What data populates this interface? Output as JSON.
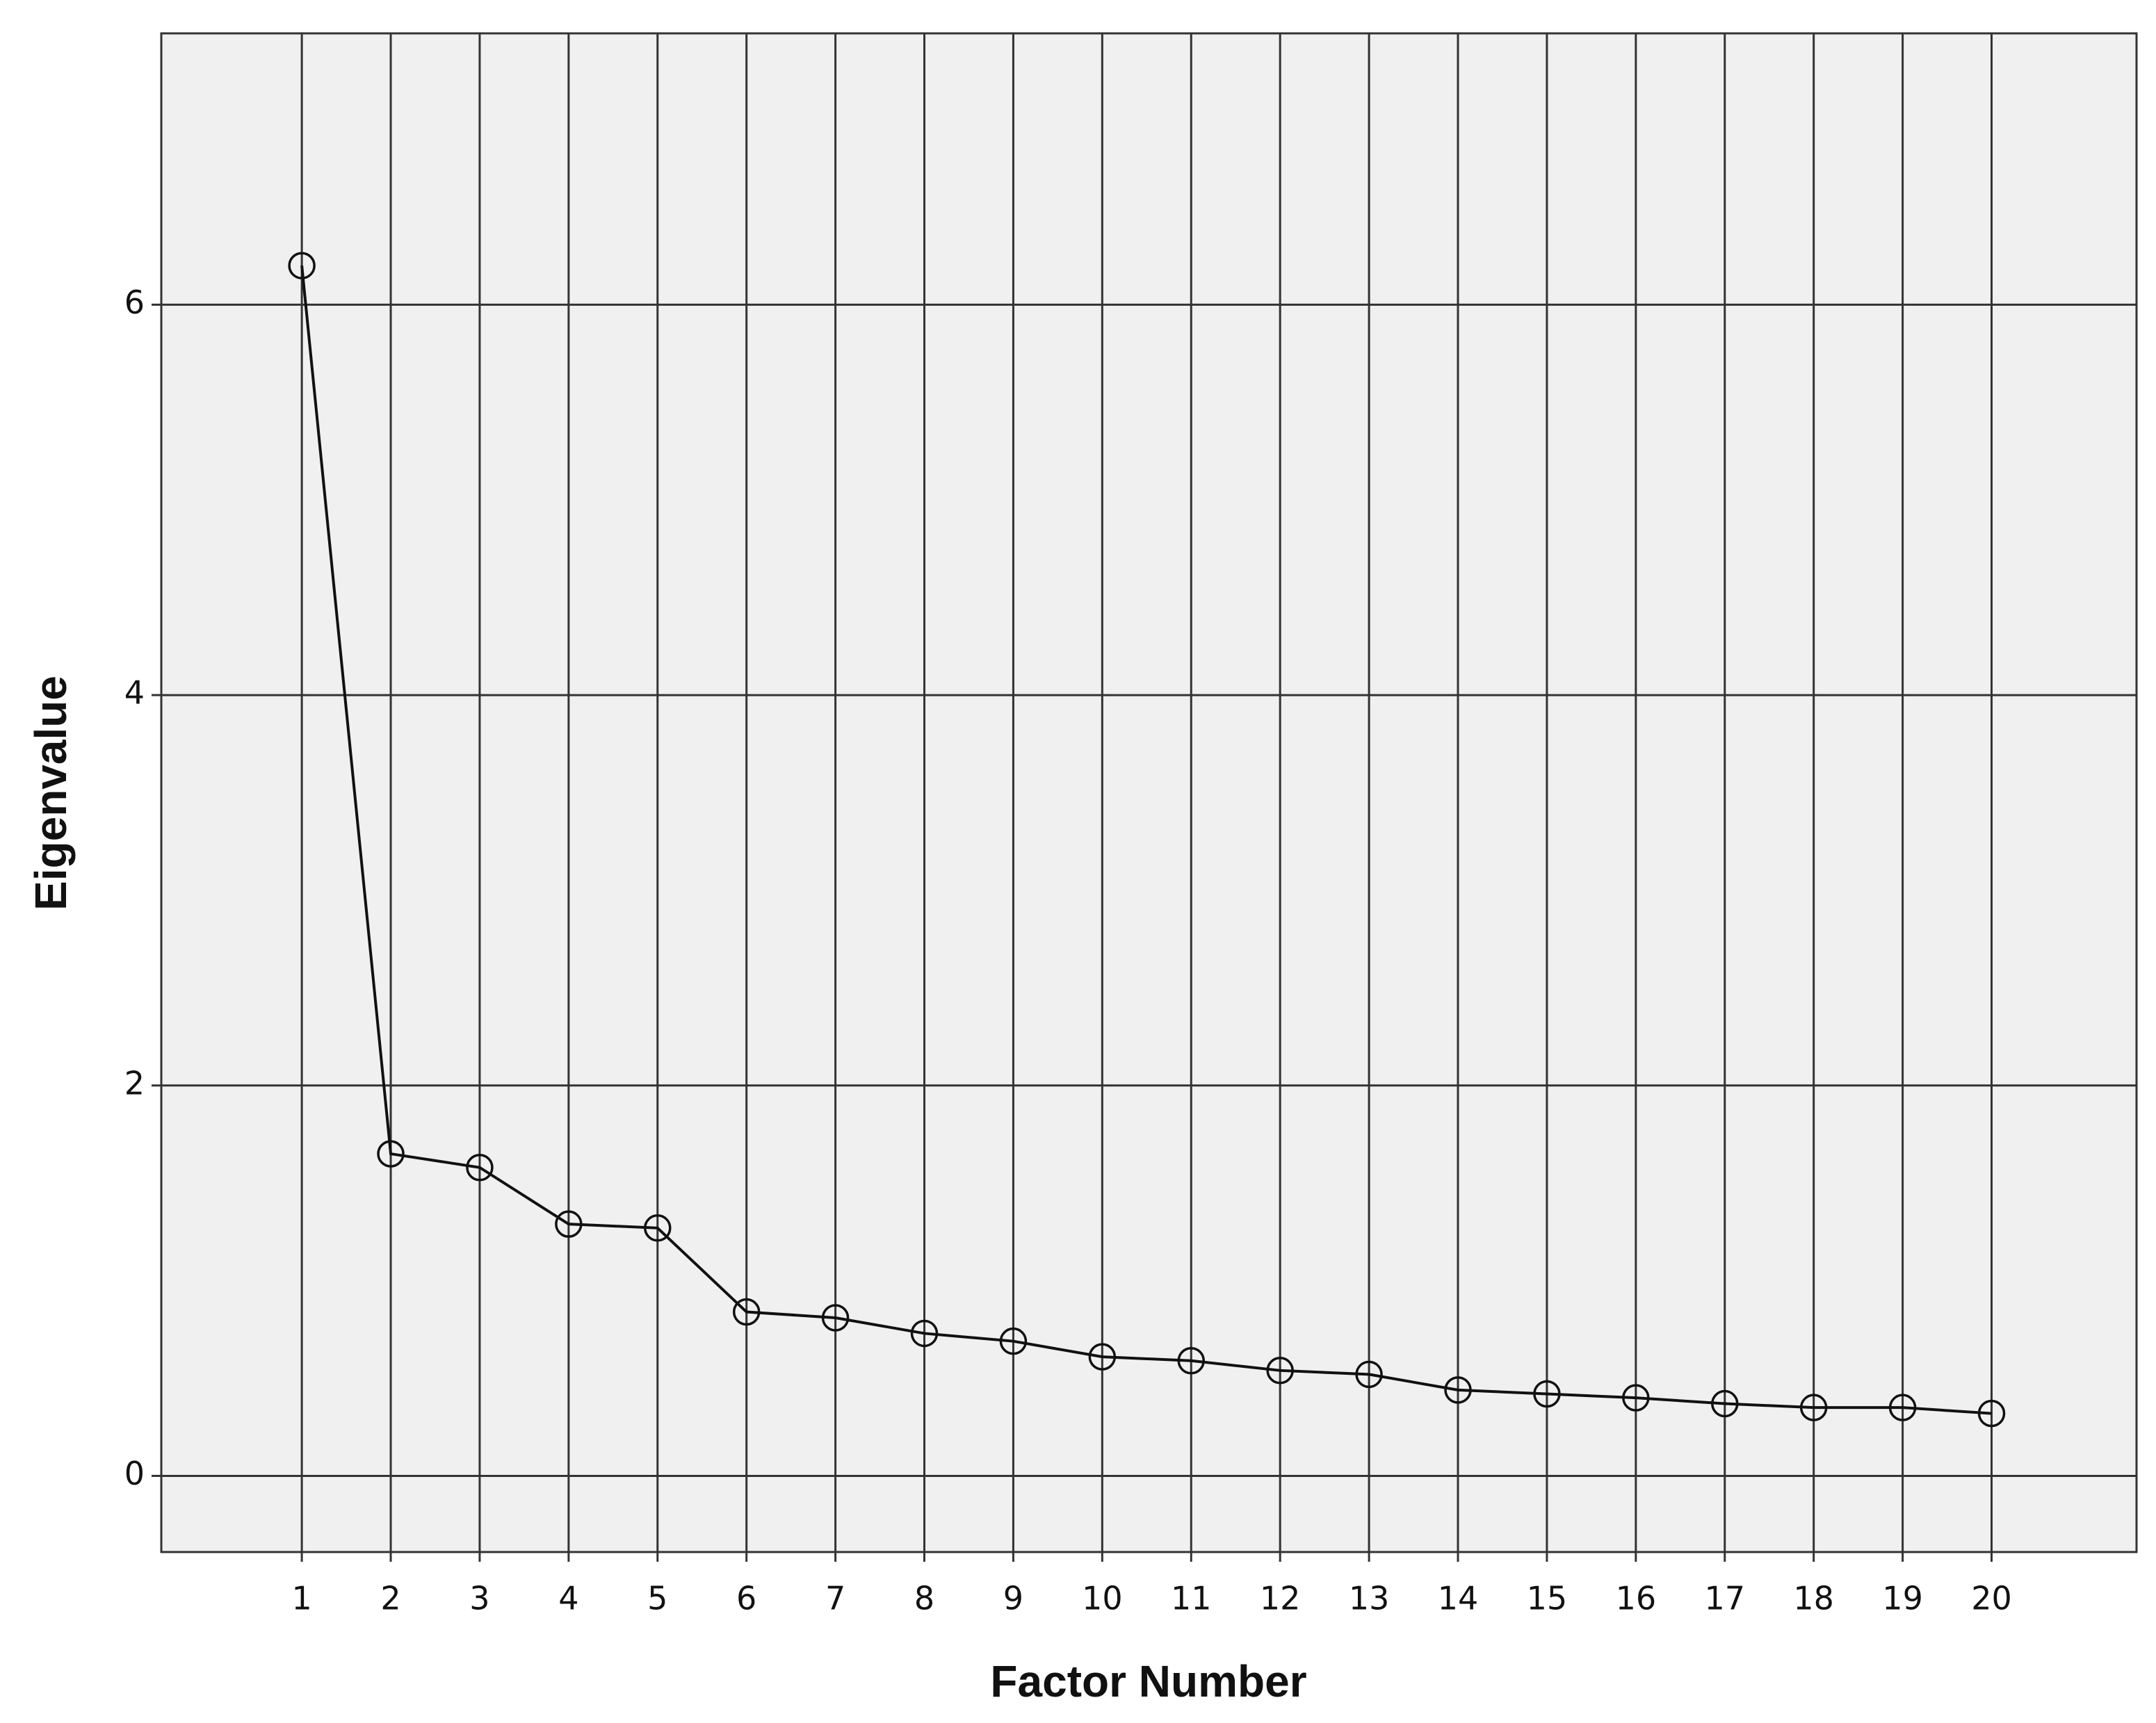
{
  "chart_data": {
    "type": "line",
    "x_label": "Factor Number",
    "y_label": "Eigenvalue",
    "x": [
      1,
      2,
      3,
      4,
      5,
      6,
      7,
      8,
      9,
      10,
      11,
      12,
      13,
      14,
      15,
      16,
      17,
      18,
      19,
      20
    ],
    "series": [
      {
        "color": "#111111",
        "values": [
          6.2,
          1.65,
          1.58,
          1.29,
          1.27,
          0.84,
          0.81,
          0.73,
          0.69,
          0.61,
          0.59,
          0.54,
          0.52,
          0.44,
          0.42,
          0.4,
          0.37,
          0.35,
          0.35,
          0.32
        ]
      }
    ],
    "xlim": [
      -0.58,
      21.63
    ],
    "ylim": [
      -0.39,
      7.39
    ],
    "xticks": [
      1,
      2,
      3,
      4,
      5,
      6,
      7,
      8,
      9,
      10,
      11,
      12,
      13,
      14,
      15,
      16,
      17,
      18,
      19,
      20
    ],
    "yticks": [
      0,
      2,
      4,
      6
    ],
    "grid": true,
    "markers": "open-circle",
    "background": "#f0f0f0"
  }
}
